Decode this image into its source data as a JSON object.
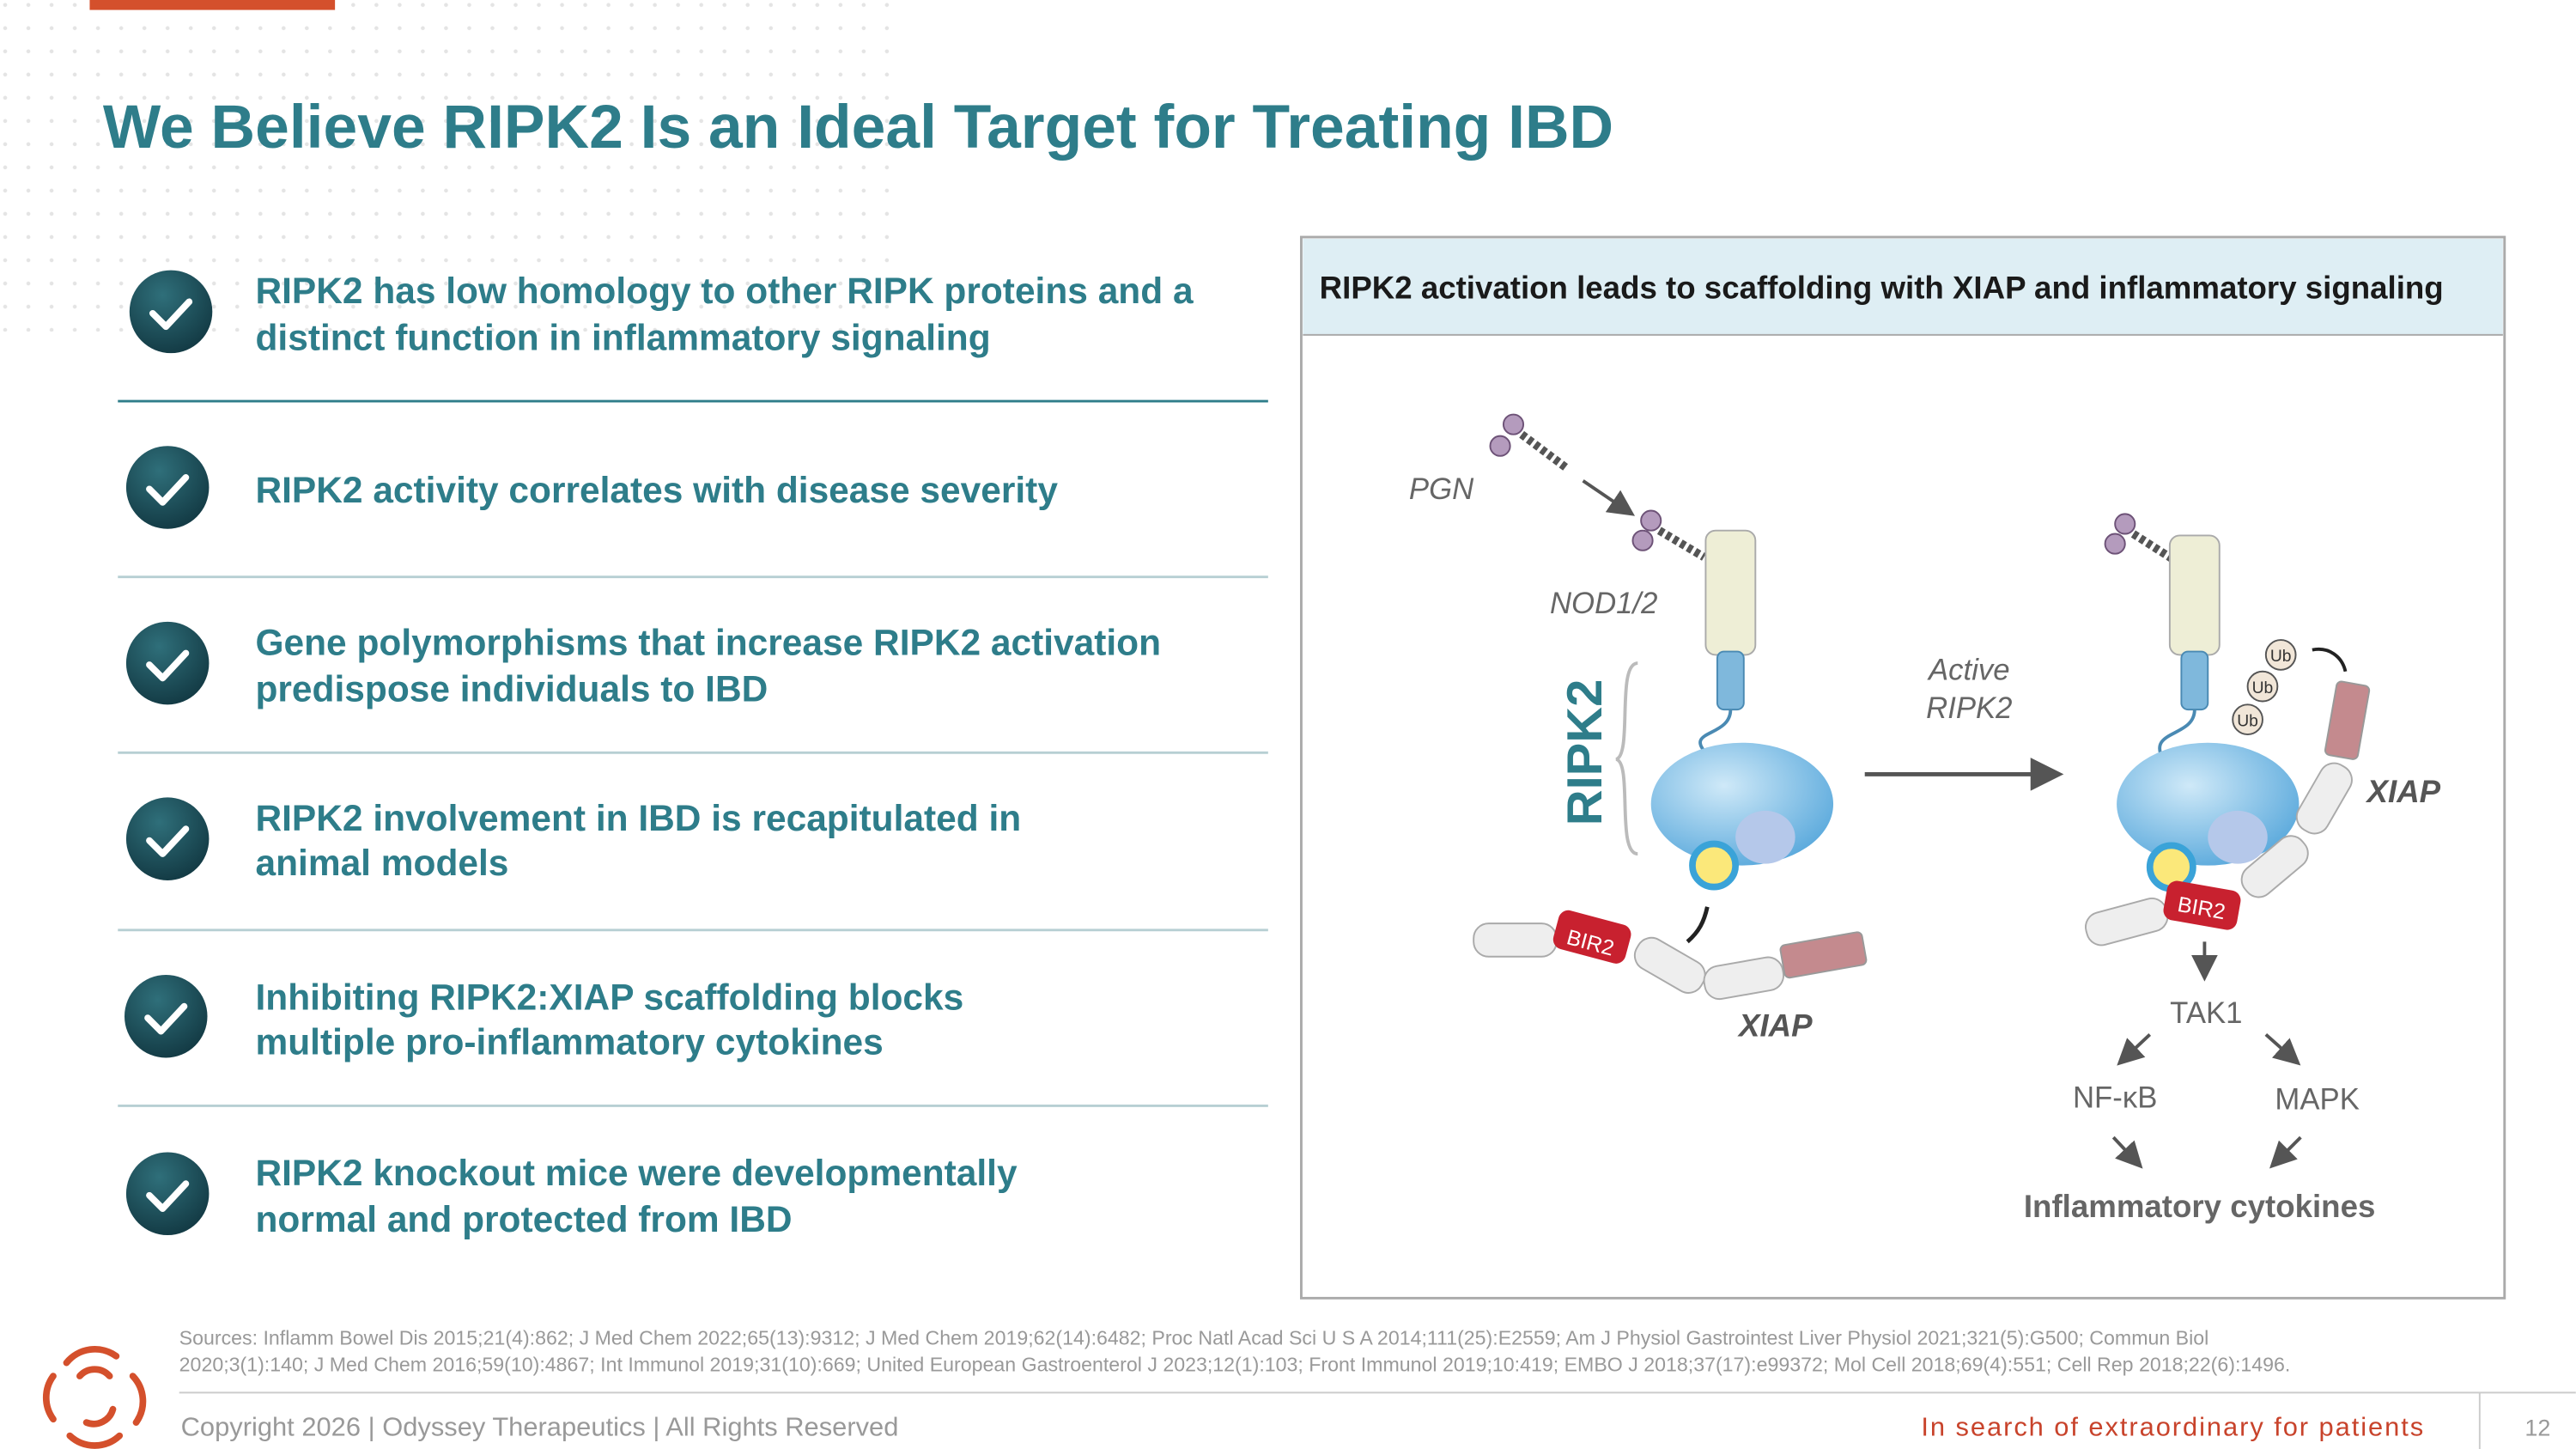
{
  "header": {
    "title": "We Believe RIPK2 Is an Ideal Target for Treating IBD"
  },
  "bullets": [
    {
      "lines": [
        "RIPK2 has low homology to other RIPK proteins and a",
        "distinct function in inflammatory signaling"
      ]
    },
    {
      "lines": [
        "RIPK2 activity correlates with disease severity"
      ]
    },
    {
      "lines": [
        "Gene polymorphisms that increase RIPK2 activation",
        "predispose individuals to IBD"
      ]
    },
    {
      "lines": [
        "RIPK2 involvement in IBD is recapitulated in",
        "animal models"
      ]
    },
    {
      "lines": [
        "Inhibiting RIPK2:XIAP scaffolding blocks",
        "multiple pro-inflammatory cytokines"
      ]
    },
    {
      "lines": [
        "RIPK2 knockout mice were developmentally",
        "normal and protected from IBD"
      ]
    }
  ],
  "panel": {
    "title": "RIPK2 activation leads to scaffolding with XIAP and inflammatory signaling",
    "labels": {
      "pgn": "PGN",
      "nod": "NOD1/2",
      "ripk2": "RIPK2",
      "active": [
        "Active",
        "RIPK2"
      ],
      "xiap_left": "XIAP",
      "xiap_right": "XIAP",
      "bir2": "BIR2",
      "ub": "Ub",
      "tak1": "TAK1",
      "nfkb": "NF-κB",
      "mapk": "MAPK",
      "cytokines": "Inflammatory cytokines"
    }
  },
  "sources": [
    "Sources: Inflamm Bowel Dis 2015;21(4):862; J Med Chem 2022;65(13):9312; J Med Chem 2019;62(14):6482; Proc Natl Acad Sci U S A 2014;111(25):E2559; Am J Physiol Gastrointest Liver Physiol 2021;321(5):G500; Commun Biol",
    "2020;3(1):140; J Med Chem 2016;59(10):4867; Int Immunol 2019;31(10):669; United European Gastroenterol J 2023;12(1):103; Front Immunol 2019;10:419; EMBO J 2018;37(17):e99372; Mol Cell 2018;69(4):551; Cell Rep 2018;22(6):1496."
  ],
  "footer": {
    "copyright": "Copyright 2026  |  Odyssey Therapeutics  |  All Rights Reserved",
    "tagline": "In search of extraordinary for patients",
    "page": "12"
  }
}
